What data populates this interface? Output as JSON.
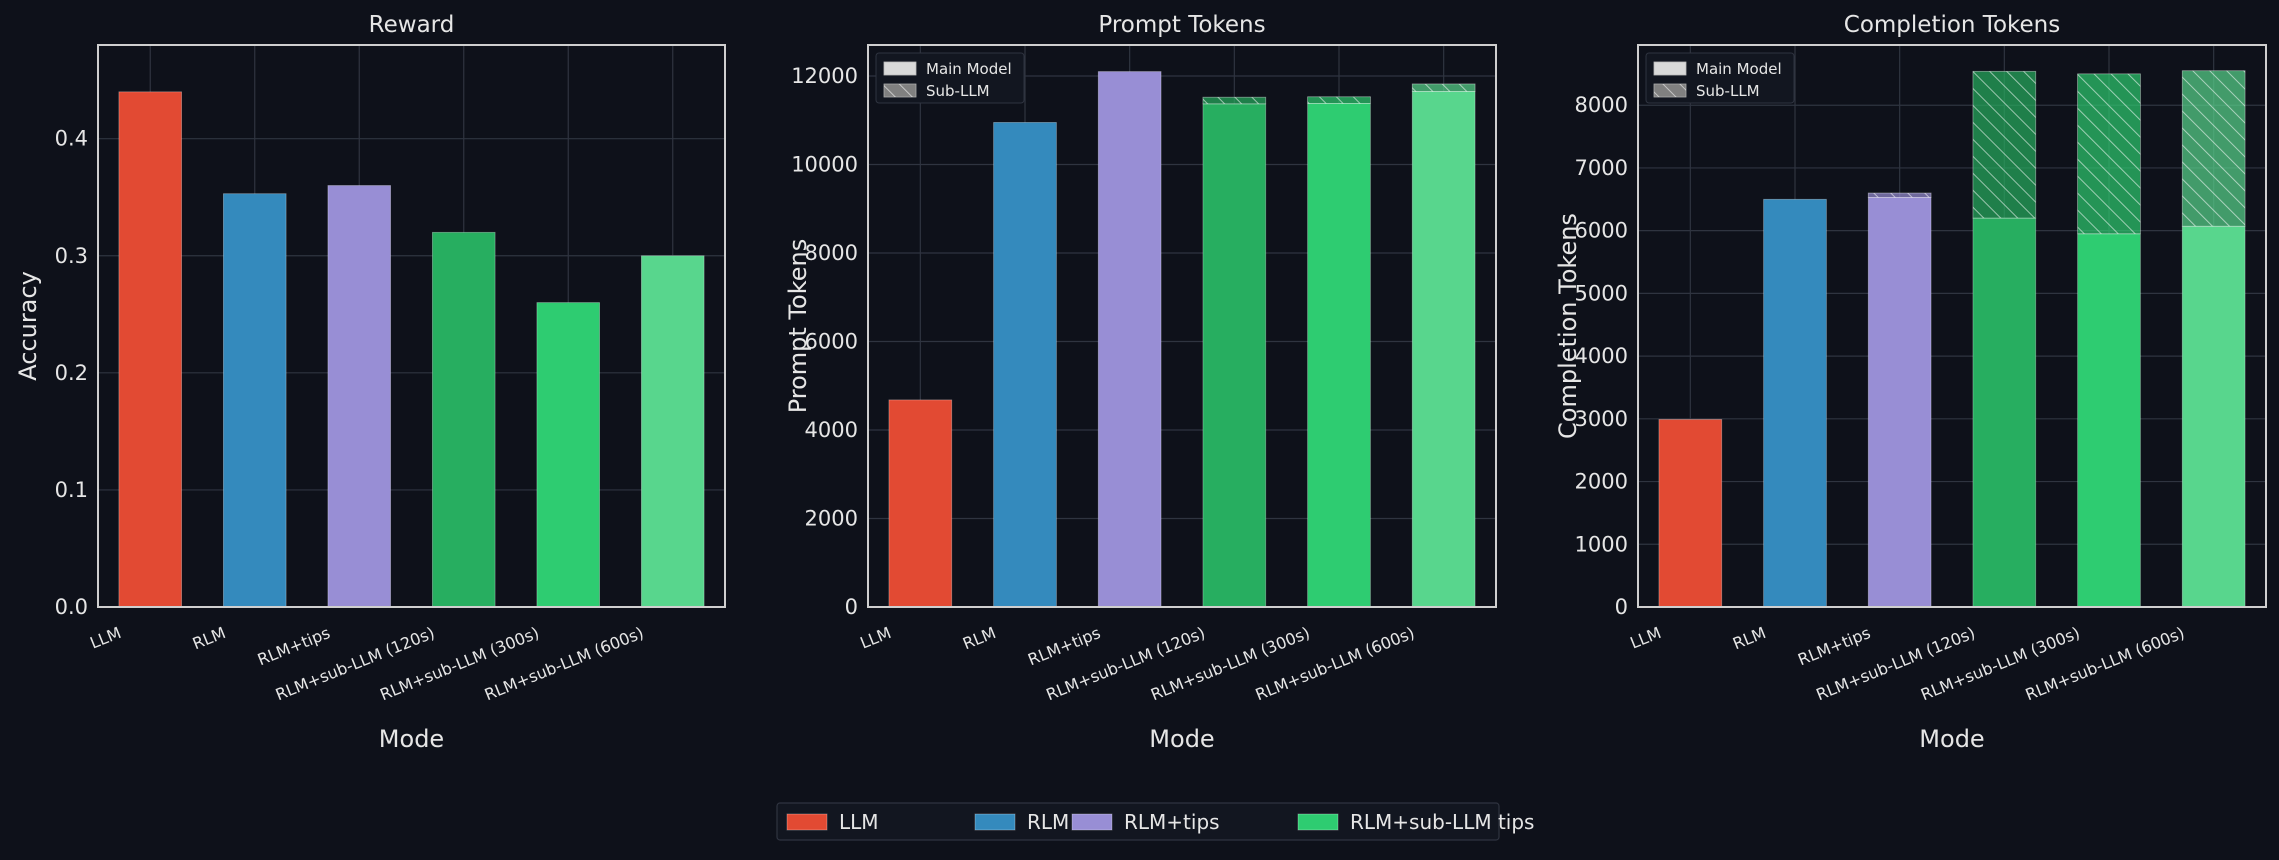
{
  "chart_data": [
    {
      "type": "bar",
      "title": "Reward",
      "xlabel": "Mode",
      "ylabel": "Accuracy",
      "categories": [
        "LLM",
        "RLM",
        "RLM+tips",
        "RLM+sub-LLM (120s)",
        "RLM+sub-LLM (300s)",
        "RLM+sub-LLM (600s)"
      ],
      "values": [
        0.44,
        0.353,
        0.36,
        0.32,
        0.26,
        0.3
      ],
      "ylim": [
        0,
        0.48
      ],
      "yticks": [
        "0.0",
        "0.1",
        "0.2",
        "0.3",
        "0.4"
      ],
      "grid": true
    },
    {
      "type": "stacked-bar",
      "title": "Prompt Tokens",
      "xlabel": "Mode",
      "ylabel": "Prompt Tokens",
      "categories": [
        "LLM",
        "RLM",
        "RLM+tips",
        "RLM+sub-LLM (120s)",
        "RLM+sub-LLM (300s)",
        "RLM+sub-LLM (600s)"
      ],
      "series": [
        {
          "name": "Main Model",
          "values": [
            4680,
            10950,
            12100,
            11370,
            11380,
            11650
          ]
        },
        {
          "name": "Sub-LLM",
          "values": [
            0,
            0,
            0,
            150,
            150,
            170
          ]
        }
      ],
      "ylim": [
        0,
        12700
      ],
      "yticks": [
        "0",
        "2000",
        "4000",
        "6000",
        "8000",
        "10000",
        "12000"
      ],
      "legend": "top-left",
      "grid": true
    },
    {
      "type": "stacked-bar",
      "title": "Completion Tokens",
      "xlabel": "Mode",
      "ylabel": "Completion Tokens",
      "categories": [
        "LLM",
        "RLM",
        "RLM+tips",
        "RLM+sub-LLM (120s)",
        "RLM+sub-LLM (300s)",
        "RLM+sub-LLM (600s)"
      ],
      "series": [
        {
          "name": "Main Model",
          "values": [
            2990,
            6500,
            6530,
            6200,
            5950,
            6070
          ]
        },
        {
          "name": "Sub-LLM",
          "values": [
            0,
            0,
            70,
            2340,
            2550,
            2480
          ]
        }
      ],
      "ylim": [
        0,
        8960
      ],
      "yticks": [
        "0",
        "1000",
        "2000",
        "3000",
        "4000",
        "5000",
        "6000",
        "7000",
        "8000"
      ],
      "legend": "top-left",
      "grid": true
    }
  ],
  "colors": {
    "background": "#0e111a",
    "grid": "#2f3440",
    "spine": "#cfcfcf",
    "bars": [
      "#e24a33",
      "#348abd",
      "#988ed5",
      "#27ae60",
      "#2ecc71",
      "#58d68d"
    ]
  },
  "legend": {
    "placement": "bottom-center",
    "items": [
      {
        "label": "LLM",
        "color": "#e24a33"
      },
      {
        "label": "RLM",
        "color": "#348abd"
      },
      {
        "label": "RLM+tips",
        "color": "#988ed5"
      },
      {
        "label": "RLM+sub-LLM tips",
        "color": "#2ecc71"
      }
    ]
  }
}
